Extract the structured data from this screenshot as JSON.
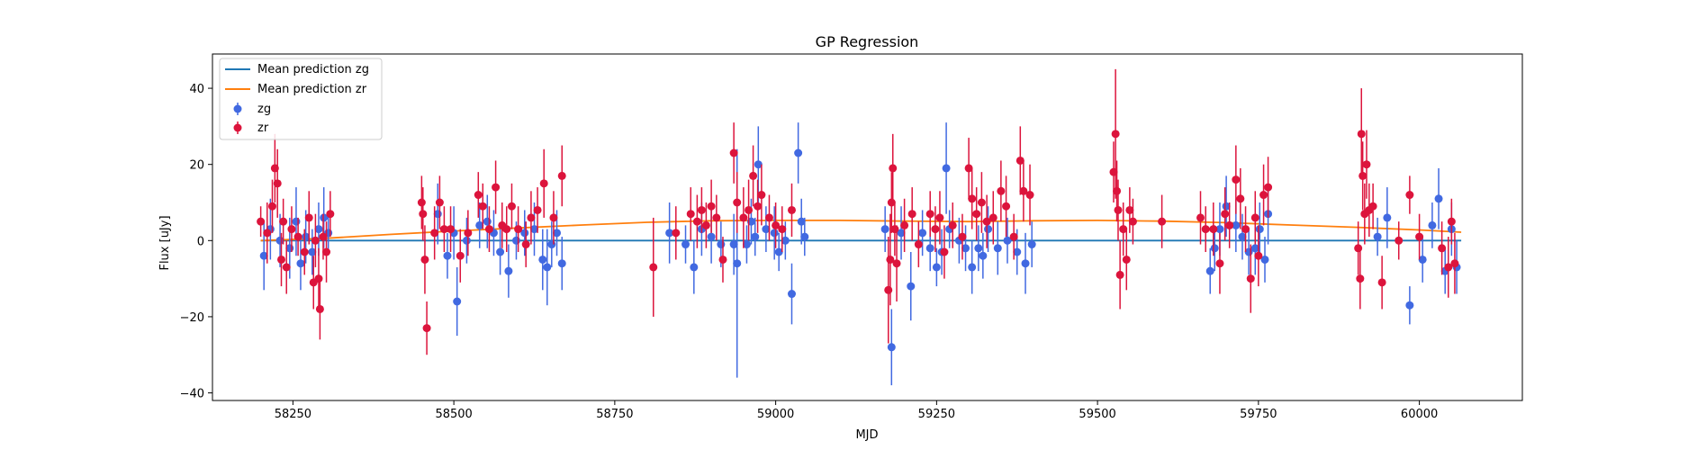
{
  "chart_data": {
    "type": "scatter",
    "title": "GP Regression",
    "xlabel": "MJD",
    "ylabel": "Flux [uJy]",
    "xlim": [
      58125,
      60160
    ],
    "ylim": [
      -42,
      49
    ],
    "xticks": [
      58250,
      58500,
      58750,
      59000,
      59250,
      59500,
      59750,
      60000
    ],
    "yticks": [
      -40,
      -20,
      0,
      20,
      40
    ],
    "grid": false,
    "legend_position": "top-left",
    "legend": [
      "Mean prediction zg",
      "Mean prediction zr",
      "zg",
      "zr"
    ],
    "colors": {
      "mean_zg": "#1f77b4",
      "mean_zr": "#ff7f0e",
      "zg": "#4169e1",
      "zr": "#dc143c"
    },
    "lines": [
      {
        "name": "Mean prediction zg",
        "x": [
          58200,
          58500,
          58800,
          59100,
          59400,
          59700,
          60000,
          60065
        ],
        "y": [
          0,
          0,
          0,
          0,
          0,
          0,
          0,
          0
        ]
      },
      {
        "name": "Mean prediction zr",
        "x": [
          58200,
          58300,
          58400,
          58500,
          58600,
          58700,
          58800,
          58900,
          59000,
          59100,
          59200,
          59300,
          59400,
          59500,
          59600,
          59700,
          59800,
          59900,
          60000,
          60065
        ],
        "y": [
          0,
          0.6,
          1.6,
          2.5,
          3.3,
          4.1,
          4.8,
          5.2,
          5.3,
          5.3,
          5.1,
          5.0,
          5.2,
          5.3,
          5.1,
          4.7,
          4.1,
          3.5,
          2.8,
          2.2
        ]
      }
    ],
    "series": [
      {
        "name": "zg",
        "points": [
          [
            58205,
            -4,
            9
          ],
          [
            58215,
            3,
            8
          ],
          [
            58230,
            0,
            7
          ],
          [
            58245,
            -2,
            8
          ],
          [
            58255,
            5,
            9
          ],
          [
            58262,
            -6,
            7
          ],
          [
            58270,
            1,
            7
          ],
          [
            58280,
            -3,
            6
          ],
          [
            58290,
            3,
            7
          ],
          [
            58298,
            6,
            8
          ],
          [
            58305,
            2,
            5
          ],
          [
            58475,
            7,
            8
          ],
          [
            58490,
            -4,
            6
          ],
          [
            58500,
            2,
            7
          ],
          [
            58505,
            -16,
            9
          ],
          [
            58520,
            0,
            6
          ],
          [
            58540,
            4,
            6
          ],
          [
            58552,
            5,
            7
          ],
          [
            58562,
            2,
            6
          ],
          [
            58572,
            -3,
            6
          ],
          [
            58585,
            -8,
            7
          ],
          [
            58597,
            0,
            5
          ],
          [
            58610,
            2,
            6
          ],
          [
            58625,
            3,
            7
          ],
          [
            58638,
            -5,
            8
          ],
          [
            58645,
            -7,
            10
          ],
          [
            58652,
            -1,
            6
          ],
          [
            58660,
            2,
            6
          ],
          [
            58668,
            -6,
            7
          ],
          [
            58835,
            2,
            8
          ],
          [
            58860,
            -1,
            5
          ],
          [
            58873,
            -7,
            7
          ],
          [
            58885,
            3,
            7
          ],
          [
            58900,
            1,
            7
          ],
          [
            58915,
            -1,
            6
          ],
          [
            58935,
            -1,
            8
          ],
          [
            58940,
            -6,
            30
          ],
          [
            58955,
            -1,
            5
          ],
          [
            58962,
            5,
            6
          ],
          [
            58968,
            1,
            5
          ],
          [
            58973,
            20,
            10
          ],
          [
            58985,
            3,
            6
          ],
          [
            58998,
            2,
            7
          ],
          [
            59005,
            -3,
            5
          ],
          [
            59015,
            0,
            5
          ],
          [
            59025,
            -14,
            8
          ],
          [
            59035,
            23,
            8
          ],
          [
            59040,
            5,
            6
          ],
          [
            59045,
            1,
            5
          ],
          [
            59170,
            3,
            6
          ],
          [
            59180,
            -28,
            10
          ],
          [
            59195,
            2,
            7
          ],
          [
            59210,
            -12,
            9
          ],
          [
            59228,
            2,
            6
          ],
          [
            59240,
            -2,
            6
          ],
          [
            59250,
            -7,
            5
          ],
          [
            59258,
            -3,
            6
          ],
          [
            59265,
            19,
            12
          ],
          [
            59270,
            3,
            5
          ],
          [
            59285,
            0,
            6
          ],
          [
            59295,
            -2,
            6
          ],
          [
            59305,
            -7,
            7
          ],
          [
            59315,
            -2,
            6
          ],
          [
            59322,
            -4,
            6
          ],
          [
            59330,
            3,
            6
          ],
          [
            59345,
            -2,
            7
          ],
          [
            59360,
            0,
            6
          ],
          [
            59375,
            -3,
            6
          ],
          [
            59388,
            -6,
            8
          ],
          [
            59398,
            -1,
            6
          ],
          [
            59675,
            -8,
            6
          ],
          [
            59682,
            -2,
            6
          ],
          [
            59690,
            3,
            7
          ],
          [
            59700,
            9,
            8
          ],
          [
            59715,
            4,
            7
          ],
          [
            59725,
            1,
            6
          ],
          [
            59735,
            -3,
            6
          ],
          [
            59745,
            -2,
            7
          ],
          [
            59752,
            3,
            7
          ],
          [
            59760,
            -5,
            6
          ],
          [
            59765,
            7,
            8
          ],
          [
            59935,
            1,
            5
          ],
          [
            59950,
            6,
            8
          ],
          [
            59985,
            -17,
            5
          ],
          [
            60005,
            -5,
            6
          ],
          [
            60020,
            4,
            6
          ],
          [
            60030,
            11,
            8
          ],
          [
            60040,
            -8,
            6
          ],
          [
            60050,
            3,
            7
          ],
          [
            60058,
            -7,
            7
          ]
        ]
      },
      {
        "name": "zr",
        "points": [
          [
            58200,
            5,
            4
          ],
          [
            58210,
            2,
            8
          ],
          [
            58218,
            9,
            7
          ],
          [
            58222,
            19,
            9
          ],
          [
            58226,
            15,
            9
          ],
          [
            58232,
            -5,
            7
          ],
          [
            58235,
            5,
            6
          ],
          [
            58240,
            -7,
            7
          ],
          [
            58248,
            3,
            6
          ],
          [
            58258,
            1,
            5
          ],
          [
            58268,
            -3,
            6
          ],
          [
            58275,
            6,
            7
          ],
          [
            58282,
            -11,
            7
          ],
          [
            58285,
            0,
            7
          ],
          [
            58290,
            -10,
            8
          ],
          [
            58292,
            -18,
            8
          ],
          [
            58297,
            1,
            6
          ],
          [
            58302,
            -3,
            8
          ],
          [
            58308,
            7,
            6
          ],
          [
            58450,
            10,
            7
          ],
          [
            58452,
            7,
            7
          ],
          [
            58455,
            -5,
            9
          ],
          [
            58458,
            -23,
            7
          ],
          [
            58470,
            2,
            7
          ],
          [
            58478,
            10,
            7
          ],
          [
            58485,
            3,
            6
          ],
          [
            58495,
            3,
            6
          ],
          [
            58510,
            -4,
            7
          ],
          [
            58522,
            2,
            6
          ],
          [
            58538,
            12,
            6
          ],
          [
            58545,
            9,
            6
          ],
          [
            58555,
            3,
            6
          ],
          [
            58565,
            14,
            7
          ],
          [
            58575,
            4,
            6
          ],
          [
            58582,
            3,
            6
          ],
          [
            58590,
            9,
            6
          ],
          [
            58600,
            3,
            6
          ],
          [
            58612,
            -1,
            6
          ],
          [
            58620,
            6,
            7
          ],
          [
            58630,
            8,
            6
          ],
          [
            58640,
            15,
            9
          ],
          [
            58655,
            6,
            7
          ],
          [
            58668,
            17,
            8
          ],
          [
            58810,
            -7,
            13
          ],
          [
            58845,
            2,
            7
          ],
          [
            58868,
            7,
            7
          ],
          [
            58878,
            5,
            7
          ],
          [
            58885,
            8,
            6
          ],
          [
            58892,
            4,
            6
          ],
          [
            58900,
            9,
            7
          ],
          [
            58908,
            6,
            6
          ],
          [
            58918,
            -5,
            6
          ],
          [
            58935,
            23,
            8
          ],
          [
            58940,
            10,
            8
          ],
          [
            58950,
            6,
            8
          ],
          [
            58958,
            8,
            8
          ],
          [
            58965,
            17,
            8
          ],
          [
            58972,
            9,
            7
          ],
          [
            58978,
            12,
            8
          ],
          [
            58990,
            6,
            6
          ],
          [
            59000,
            4,
            6
          ],
          [
            59010,
            3,
            6
          ],
          [
            59025,
            8,
            7
          ],
          [
            59175,
            -13,
            14
          ],
          [
            59178,
            -5,
            12
          ],
          [
            59180,
            10,
            8
          ],
          [
            59182,
            19,
            9
          ],
          [
            59185,
            3,
            7
          ],
          [
            59188,
            -6,
            10
          ],
          [
            59200,
            4,
            7
          ],
          [
            59212,
            7,
            7
          ],
          [
            59222,
            -1,
            6
          ],
          [
            59240,
            7,
            6
          ],
          [
            59248,
            3,
            6
          ],
          [
            59255,
            6,
            7
          ],
          [
            59262,
            -3,
            7
          ],
          [
            59275,
            4,
            6
          ],
          [
            59290,
            1,
            6
          ],
          [
            59300,
            19,
            8
          ],
          [
            59305,
            11,
            8
          ],
          [
            59312,
            7,
            7
          ],
          [
            59320,
            10,
            8
          ],
          [
            59328,
            5,
            7
          ],
          [
            59338,
            6,
            7
          ],
          [
            59350,
            13,
            8
          ],
          [
            59358,
            9,
            8
          ],
          [
            59370,
            1,
            6
          ],
          [
            59380,
            21,
            9
          ],
          [
            59385,
            13,
            8
          ],
          [
            59395,
            12,
            8
          ],
          [
            59525,
            18,
            8
          ],
          [
            59528,
            28,
            17
          ],
          [
            59530,
            13,
            8
          ],
          [
            59532,
            8,
            8
          ],
          [
            59535,
            -9,
            9
          ],
          [
            59540,
            3,
            7
          ],
          [
            59545,
            -5,
            8
          ],
          [
            59550,
            8,
            6
          ],
          [
            59555,
            5,
            6
          ],
          [
            59600,
            5,
            7
          ],
          [
            59660,
            6,
            7
          ],
          [
            59668,
            3,
            6
          ],
          [
            59680,
            3,
            7
          ],
          [
            59690,
            -6,
            8
          ],
          [
            59698,
            7,
            7
          ],
          [
            59705,
            4,
            6
          ],
          [
            59715,
            16,
            9
          ],
          [
            59722,
            11,
            8
          ],
          [
            59730,
            3,
            6
          ],
          [
            59738,
            -10,
            9
          ],
          [
            59745,
            6,
            7
          ],
          [
            59750,
            -4,
            8
          ],
          [
            59758,
            12,
            8
          ],
          [
            59765,
            14,
            8
          ],
          [
            59905,
            -2,
            7
          ],
          [
            59908,
            -10,
            8
          ],
          [
            59910,
            28,
            12
          ],
          [
            59912,
            17,
            9
          ],
          [
            59915,
            7,
            8
          ],
          [
            59918,
            20,
            9
          ],
          [
            59922,
            8,
            7
          ],
          [
            59928,
            9,
            6
          ],
          [
            59942,
            -11,
            7
          ],
          [
            59968,
            0,
            5
          ],
          [
            59985,
            12,
            5
          ],
          [
            60000,
            1,
            6
          ],
          [
            60035,
            -2,
            7
          ],
          [
            60045,
            -7,
            8
          ],
          [
            60050,
            5,
            6
          ],
          [
            60055,
            -6,
            8
          ]
        ]
      }
    ]
  }
}
